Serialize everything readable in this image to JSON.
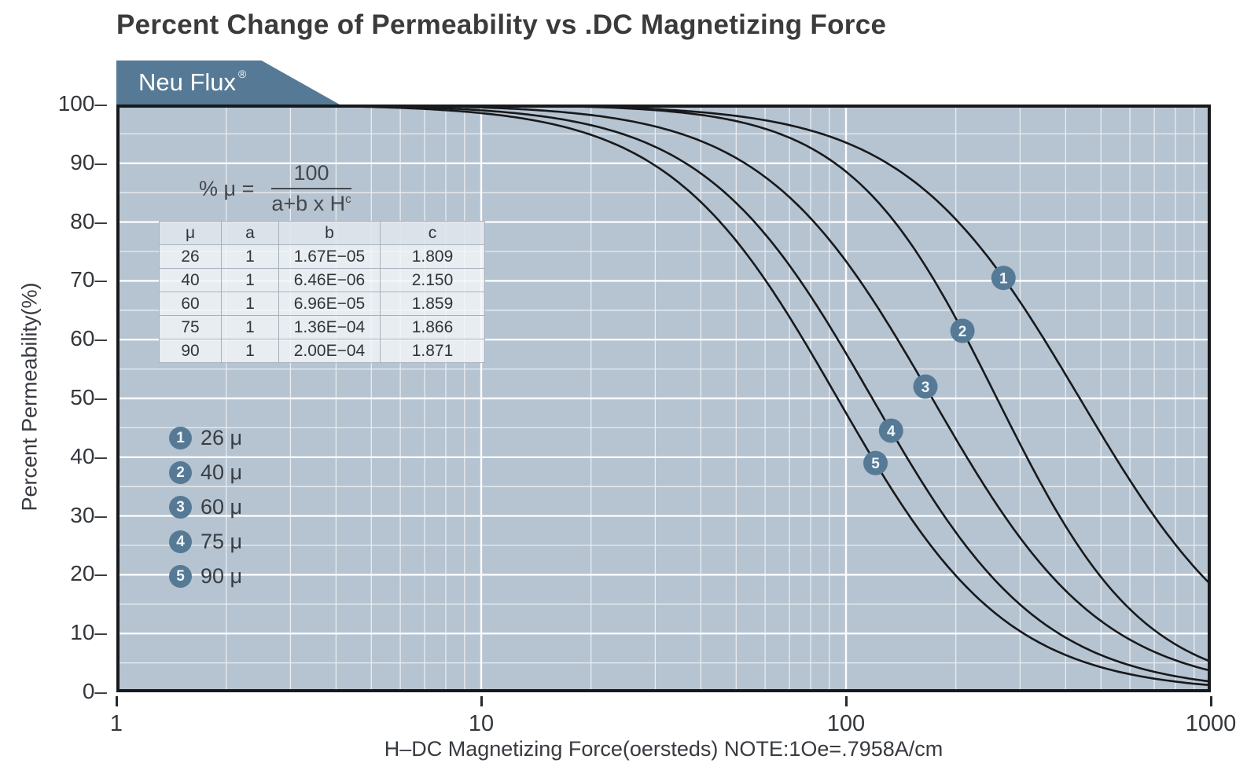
{
  "header": {
    "title": "Percent Change of Permeability vs .DC Magnetizing Force",
    "badge": "Neu Flux",
    "badge_mark": "®"
  },
  "axes": {
    "y_title": "Percent Permeability(%)",
    "x_title": "H–DC Magnetizing Force(oersteds) NOTE:1Oe=.7958A/cm",
    "y_ticks": [
      "100",
      "90",
      "80",
      "70",
      "60",
      "50",
      "40",
      "30",
      "20",
      "10",
      "0"
    ],
    "x_ticks": [
      "1",
      "10",
      "100",
      "1000"
    ]
  },
  "formula": {
    "lhs": "% μ =",
    "numerator": "100",
    "denominator": "a+b x H",
    "exponent": "c"
  },
  "table": {
    "headers": [
      "μ",
      "a",
      "b",
      "c"
    ],
    "rows": [
      [
        "26",
        "1",
        "1.67E−05",
        "1.809"
      ],
      [
        "40",
        "1",
        "6.46E−06",
        "2.150"
      ],
      [
        "60",
        "1",
        "6.96E−05",
        "1.859"
      ],
      [
        "75",
        "1",
        "1.36E−04",
        "1.866"
      ],
      [
        "90",
        "1",
        "2.00E−04",
        "1.871"
      ]
    ]
  },
  "legend": [
    {
      "num": "1",
      "label": "26 μ"
    },
    {
      "num": "2",
      "label": "40 μ"
    },
    {
      "num": "3",
      "label": "60 μ"
    },
    {
      "num": "4",
      "label": "75 μ"
    },
    {
      "num": "5",
      "label": "90 μ"
    }
  ],
  "chart_data": {
    "type": "line",
    "title": "Percent Change of Permeability vs .DC Magnetizing Force",
    "xlabel": "H-DC Magnetizing Force (oersteds), NOTE: 1 Oe = .7958 A/cm",
    "ylabel": "Percent Permeability (%)",
    "x_axis": {
      "scale": "log",
      "min": 1,
      "max": 1000,
      "major_ticks": [
        1,
        10,
        100,
        1000
      ]
    },
    "y_axis": {
      "min": 0,
      "max": 100,
      "major_grid_step": 10,
      "minor_grid_step": 5
    },
    "formula": "%μ = 100 / (a + b × H^c)",
    "series": [
      {
        "marker": "1",
        "name": "26 μ",
        "a": 1,
        "b": 1.67e-05,
        "c": 1.809,
        "marker_percent": 70.5
      },
      {
        "marker": "2",
        "name": "40 μ",
        "a": 1,
        "b": 6.46e-06,
        "c": 2.15,
        "marker_percent": 61.5
      },
      {
        "marker": "3",
        "name": "60 μ",
        "a": 1,
        "b": 6.96e-05,
        "c": 1.859,
        "marker_percent": 52.0
      },
      {
        "marker": "4",
        "name": "75 μ",
        "a": 1,
        "b": 0.000136,
        "c": 1.866,
        "marker_percent": 44.5
      },
      {
        "marker": "5",
        "name": "90 μ",
        "a": 1,
        "b": 0.0002,
        "c": 1.871,
        "marker_percent": 39.0
      }
    ],
    "colors": {
      "plot_bg": "#b6c3d1",
      "grid": "#ffffff",
      "curve": "#17191b",
      "border": "#17191b",
      "accent": "#567a95"
    }
  }
}
